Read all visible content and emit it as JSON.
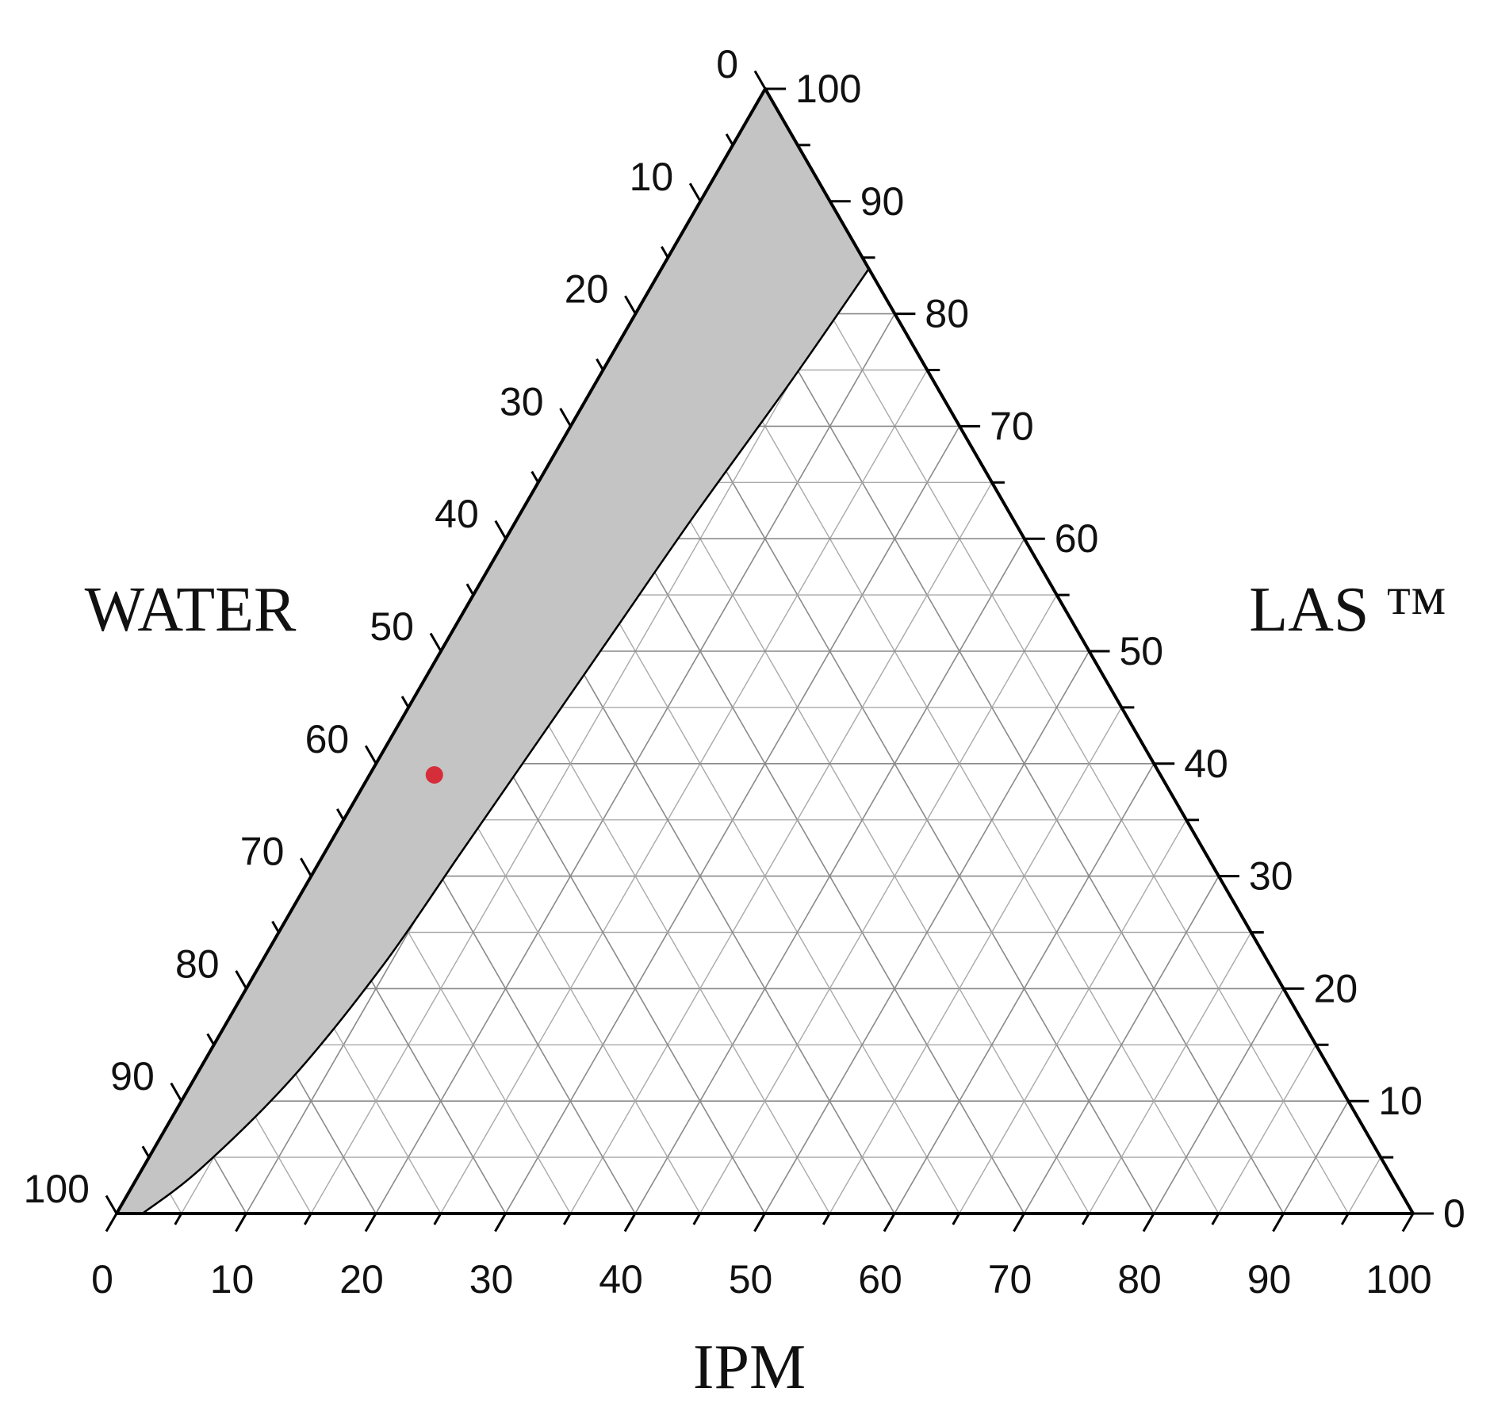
{
  "chart_data": {
    "type": "ternary",
    "axes": {
      "left": {
        "title": "WATER",
        "ticks": [
          0,
          10,
          20,
          30,
          40,
          50,
          60,
          70,
          80,
          90,
          100
        ]
      },
      "right": {
        "title": "LAS ™",
        "ticks": [
          0,
          10,
          20,
          30,
          40,
          50,
          60,
          70,
          80,
          90,
          100
        ]
      },
      "bottom": {
        "title": "IPM",
        "ticks": [
          0,
          10,
          20,
          30,
          40,
          50,
          60,
          70,
          80,
          90,
          100
        ]
      }
    },
    "grid": true,
    "grid_step": 5,
    "regions": [
      {
        "fill": "#c4c4c4",
        "boundary": [
          {
            "ipm": 0,
            "las": 100,
            "water": 0
          },
          {
            "ipm": 16,
            "las": 84,
            "water": 0
          },
          {
            "ipm": 15,
            "las": 74,
            "water": 11
          },
          {
            "ipm": 13.5,
            "las": 62,
            "water": 24.5
          },
          {
            "ipm": 12.5,
            "las": 52,
            "water": 35.5
          },
          {
            "ipm": 11.5,
            "las": 42,
            "water": 46.5
          },
          {
            "ipm": 10.5,
            "las": 32,
            "water": 57.5
          },
          {
            "ipm": 9.5,
            "las": 22,
            "water": 68.5
          },
          {
            "ipm": 7.5,
            "las": 12,
            "water": 80.5
          },
          {
            "ipm": 4.5,
            "las": 4,
            "water": 91.5
          },
          {
            "ipm": 2,
            "las": 0,
            "water": 98
          },
          {
            "ipm": 0,
            "las": 0,
            "water": 100
          }
        ]
      }
    ],
    "points": [
      {
        "ipm": 5,
        "las": 39,
        "water": 56,
        "color": "#d62d3a"
      }
    ],
    "colors": {
      "frame": "#000000",
      "grid": "#a9a9a9",
      "region": "#c4c4c4",
      "point": "#d62d3a"
    }
  }
}
